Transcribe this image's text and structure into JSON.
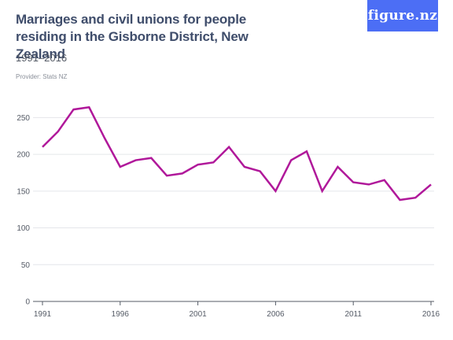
{
  "header": {
    "title": "Marriages and civil unions for people residing in the Gisborne District, New Zealand",
    "subtitle": "1991–2016",
    "provider": "Provider: Stats NZ",
    "logo_text": "figure.nz"
  },
  "colors": {
    "line": "#b0189a",
    "logo_bg": "#4c6ef5",
    "grid": "#e4e6ea",
    "title": "#3f4d6b"
  },
  "chart_data": {
    "type": "line",
    "title": "Marriages and civil unions for people residing in the Gisborne District, New Zealand",
    "subtitle": "1991–2016",
    "xlabel": "",
    "ylabel": "",
    "x": [
      1991,
      1992,
      1993,
      1994,
      1995,
      1996,
      1997,
      1998,
      1999,
      2000,
      2001,
      2002,
      2003,
      2004,
      2005,
      2006,
      2007,
      2008,
      2009,
      2010,
      2011,
      2012,
      2013,
      2014,
      2015,
      2016
    ],
    "series": [
      {
        "values": [
          210,
          231,
          261,
          264,
          222,
          183,
          192,
          195,
          171,
          174,
          186,
          189,
          210,
          183,
          177,
          150,
          192,
          204,
          150,
          183,
          162,
          159,
          165,
          138,
          141,
          159
        ]
      }
    ],
    "ylim": [
      0,
      275
    ],
    "y_ticks": [
      0,
      50,
      100,
      150,
      200,
      250
    ],
    "x_ticks": [
      1991,
      1996,
      2001,
      2006,
      2011,
      2016
    ],
    "grid": true,
    "legend": "none"
  }
}
